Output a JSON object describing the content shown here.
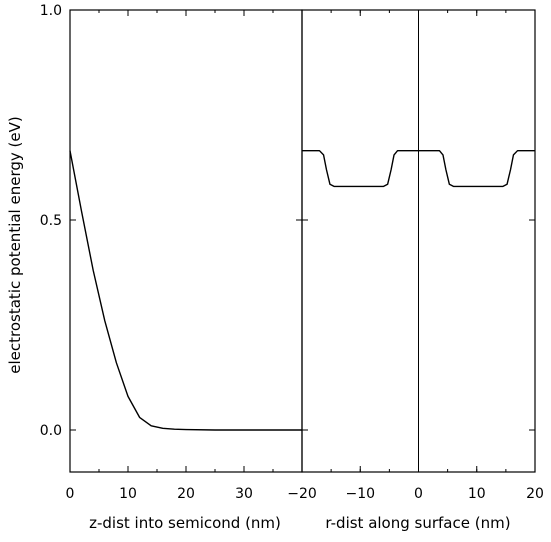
{
  "chart_data": {
    "type": "line",
    "ylabel": "electrostatic potential energy (eV)",
    "ylim": [
      -0.1,
      1.0
    ],
    "y_ticks": [
      "0.0",
      "0.5",
      "1.0"
    ],
    "y_tick_values": [
      0.0,
      0.5,
      1.0
    ],
    "panels": [
      {
        "name": "z-panel",
        "xlabel": "z-dist into semicond (nm)",
        "xlim": [
          0,
          40
        ],
        "x_ticks": [
          "0",
          "10",
          "20",
          "30"
        ],
        "x_tick_values": [
          0,
          10,
          20,
          30
        ],
        "series": [
          {
            "x": [
              0,
              2,
              4,
              6,
              8,
              10,
              12,
              14,
              16,
              18,
              20,
              25,
              30,
              35,
              40
            ],
            "y": [
              0.665,
              0.52,
              0.38,
              0.26,
              0.16,
              0.08,
              0.03,
              0.01,
              0.004,
              0.002,
              0.001,
              0.0,
              0.0,
              0.0,
              0.0
            ]
          }
        ]
      },
      {
        "name": "r-panel",
        "xlabel": "r-dist along surface (nm)",
        "xlim": [
          -20,
          20
        ],
        "x_ticks": [
          "−20",
          "−10",
          "0",
          "10",
          "20"
        ],
        "x_tick_values": [
          -20,
          -10,
          0,
          10,
          20
        ],
        "series": [
          {
            "x": [
              -20,
              -17,
              -16.3,
              -15.8,
              -15.2,
              -14.5,
              -6,
              -5.3,
              -4.7,
              -4.2,
              -3.6,
              0,
              3.6,
              4.2,
              4.7,
              5.3,
              6,
              14.5,
              15.2,
              15.8,
              16.3,
              17,
              20
            ],
            "y": [
              0.665,
              0.665,
              0.655,
              0.62,
              0.585,
              0.58,
              0.58,
              0.585,
              0.62,
              0.655,
              0.665,
              0.665,
              0.665,
              0.655,
              0.62,
              0.585,
              0.58,
              0.58,
              0.585,
              0.62,
              0.655,
              0.665,
              0.665
            ]
          }
        ]
      }
    ]
  }
}
